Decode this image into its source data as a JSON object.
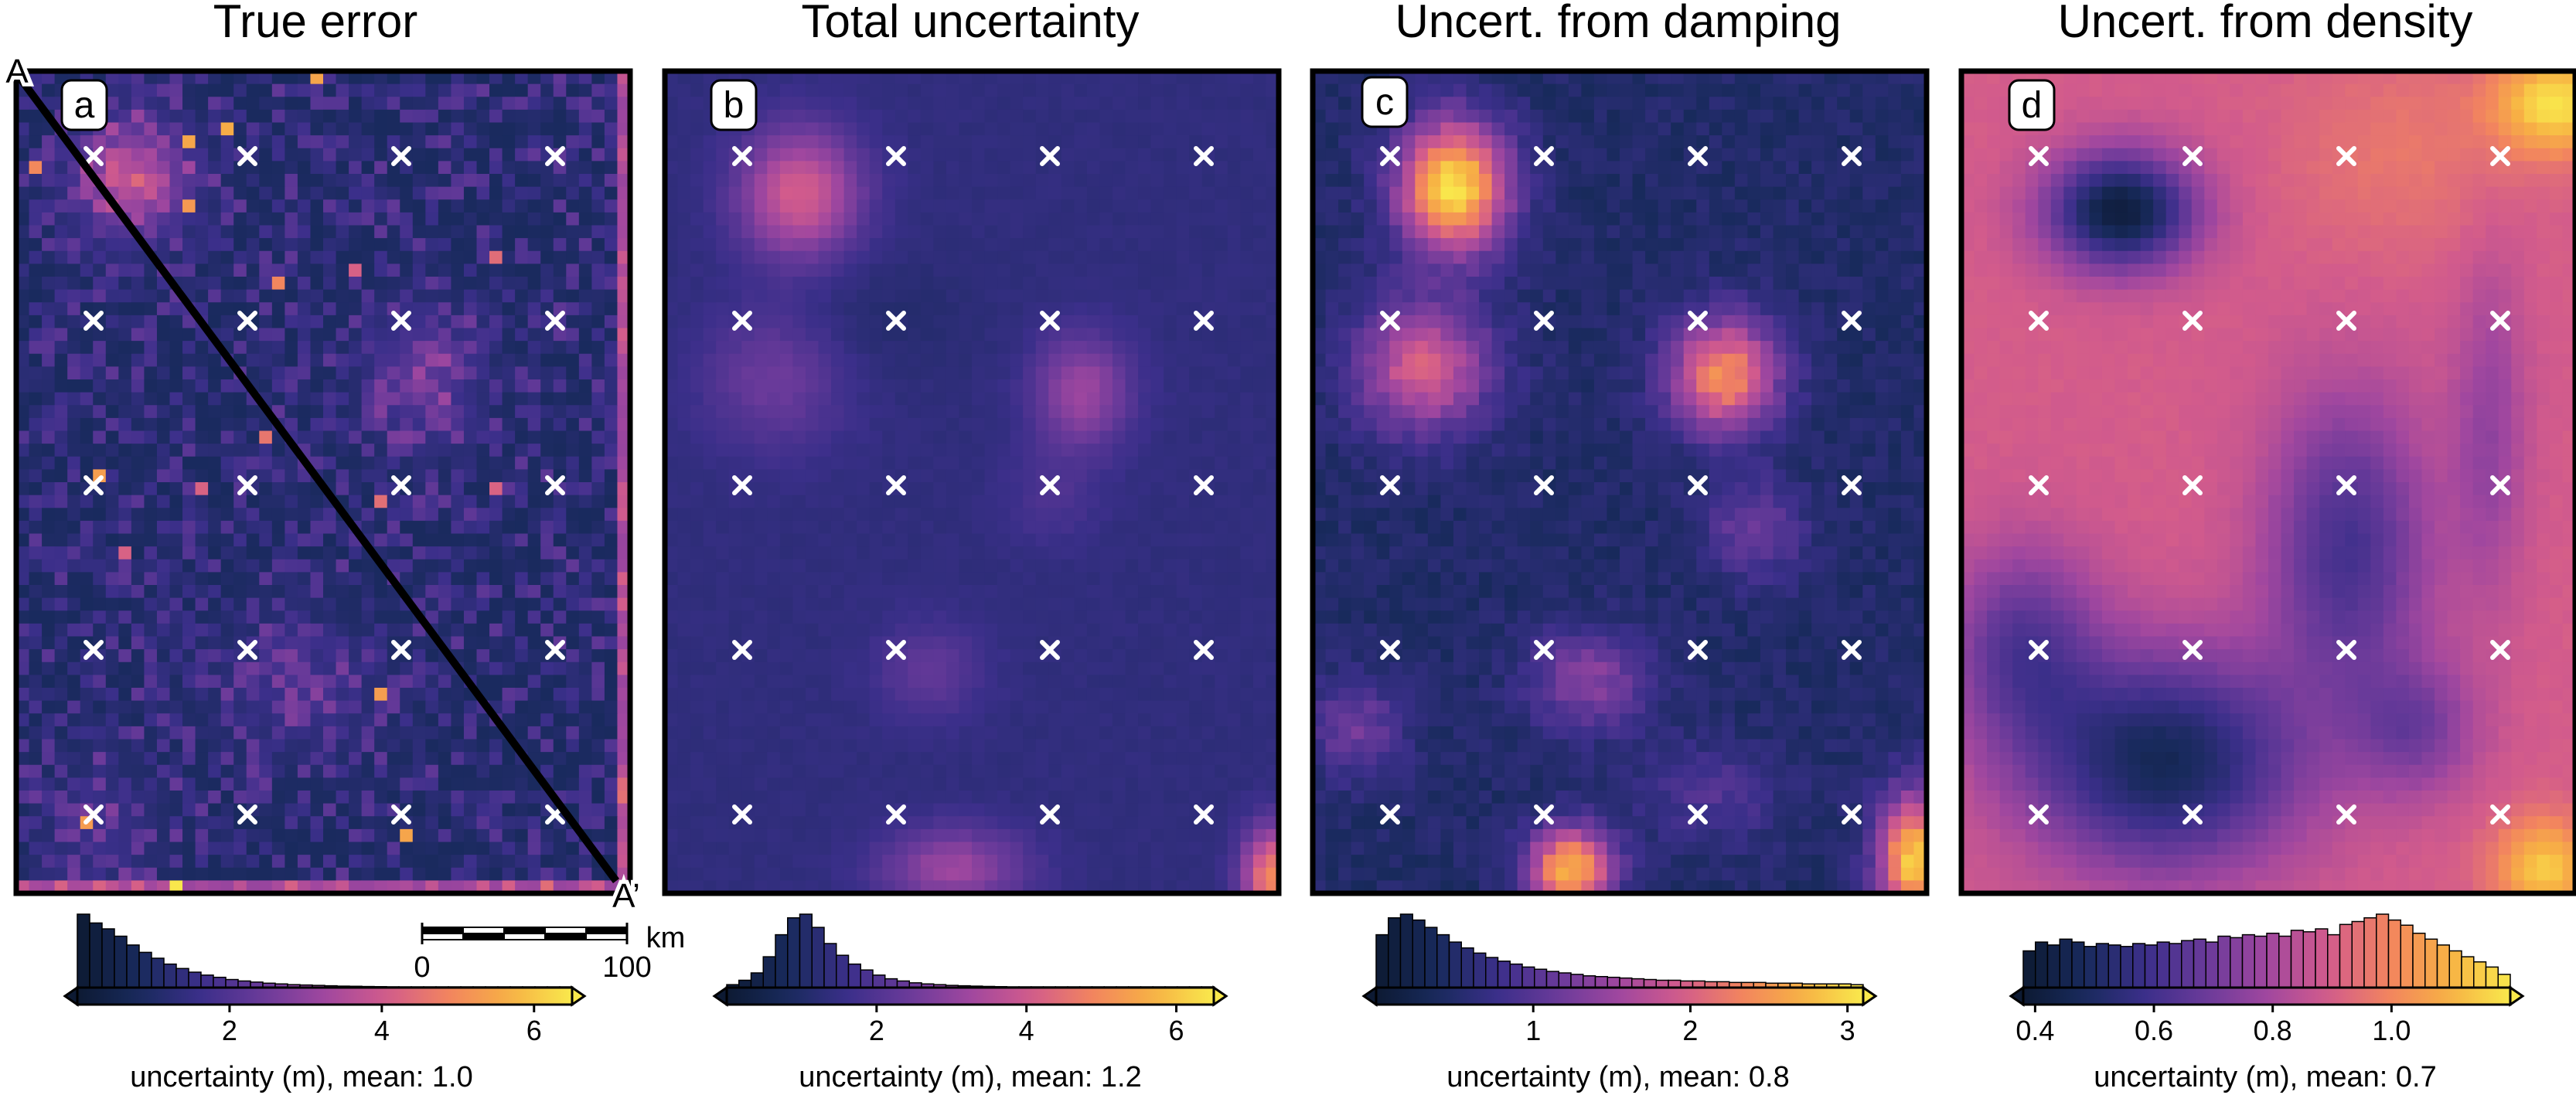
{
  "colors": {
    "colormap": "plasma-like (dark navy -> purple -> pink -> orange -> yellow)",
    "cmap_stops": [
      "#0d1a33",
      "#182a5c",
      "#3b2f8a",
      "#6a3a9a",
      "#a0479f",
      "#d25b8c",
      "#f2845f",
      "#f7b144",
      "#f9e94c"
    ],
    "marker_color": "#ffffff",
    "profile_line_color": "#000000",
    "frame_color": "#000000",
    "text_color": "#000000"
  },
  "profile": {
    "start_label": "A",
    "end_label": "A’"
  },
  "scalebar": {
    "tick_labels": [
      "0",
      "100"
    ],
    "unit": "km"
  },
  "chart_data": [
    {
      "type": "heatmap",
      "panel_label": "a",
      "title": "True error",
      "colorbar": {
        "label": "uncertainty (m), mean: 1.0",
        "ticks": [
          2,
          4,
          6
        ],
        "range": [
          0.0,
          6.5
        ],
        "extend": "both"
      },
      "histogram": [
        1.0,
        0.88,
        0.8,
        0.7,
        0.58,
        0.48,
        0.4,
        0.32,
        0.26,
        0.21,
        0.17,
        0.14,
        0.11,
        0.09,
        0.075,
        0.06,
        0.05,
        0.04,
        0.035,
        0.03,
        0.025,
        0.02,
        0.018,
        0.015,
        0.013,
        0.011,
        0.01,
        0.009,
        0.008,
        0.007,
        0.006,
        0.005,
        0.005,
        0.004,
        0.004,
        0.003,
        0.003,
        0.003,
        0.002,
        0.002
      ]
    },
    {
      "type": "heatmap",
      "panel_label": "b",
      "title": "Total uncertainty",
      "colorbar": {
        "label": "uncertainty (m), mean: 1.2",
        "ticks": [
          2,
          4,
          6
        ],
        "range": [
          0.0,
          6.5
        ],
        "extend": "both"
      },
      "histogram": [
        0.04,
        0.1,
        0.2,
        0.42,
        0.72,
        0.95,
        1.0,
        0.82,
        0.6,
        0.44,
        0.32,
        0.24,
        0.17,
        0.12,
        0.09,
        0.065,
        0.05,
        0.04,
        0.03,
        0.025,
        0.02,
        0.016,
        0.013,
        0.01,
        0.008,
        0.007,
        0.006,
        0.005,
        0.004,
        0.003,
        0.003,
        0.002,
        0.002,
        0.002,
        0.002,
        0.001,
        0.001,
        0.001,
        0.001,
        0.001
      ]
    },
    {
      "type": "heatmap",
      "panel_label": "c",
      "title": "Uncert. from damping",
      "colorbar": {
        "label": "uncertainty (m), mean: 0.8",
        "ticks": [
          1,
          2,
          3
        ],
        "range": [
          0.0,
          3.1
        ],
        "extend": "both"
      },
      "histogram": [
        0.72,
        0.95,
        1.0,
        0.92,
        0.82,
        0.72,
        0.62,
        0.54,
        0.47,
        0.41,
        0.36,
        0.32,
        0.28,
        0.25,
        0.22,
        0.2,
        0.18,
        0.16,
        0.15,
        0.14,
        0.13,
        0.12,
        0.11,
        0.1,
        0.1,
        0.09,
        0.09,
        0.08,
        0.08,
        0.07,
        0.07,
        0.07,
        0.06,
        0.06,
        0.06,
        0.05,
        0.05,
        0.05,
        0.05,
        0.04
      ]
    },
    {
      "type": "heatmap",
      "panel_label": "d",
      "title": "Uncert. from density",
      "colorbar": {
        "label": "uncertainty (m), mean: 0.7",
        "ticks": [
          0.4,
          0.6,
          0.8,
          1.0
        ],
        "range": [
          0.38,
          1.2
        ],
        "extend": "both"
      },
      "histogram": [
        0.5,
        0.62,
        0.58,
        0.66,
        0.62,
        0.56,
        0.6,
        0.58,
        0.56,
        0.6,
        0.58,
        0.62,
        0.6,
        0.64,
        0.66,
        0.62,
        0.7,
        0.68,
        0.72,
        0.7,
        0.74,
        0.7,
        0.78,
        0.76,
        0.8,
        0.72,
        0.86,
        0.9,
        0.95,
        1.0,
        0.92,
        0.85,
        0.74,
        0.66,
        0.58,
        0.5,
        0.42,
        0.35,
        0.28,
        0.18
      ]
    }
  ]
}
